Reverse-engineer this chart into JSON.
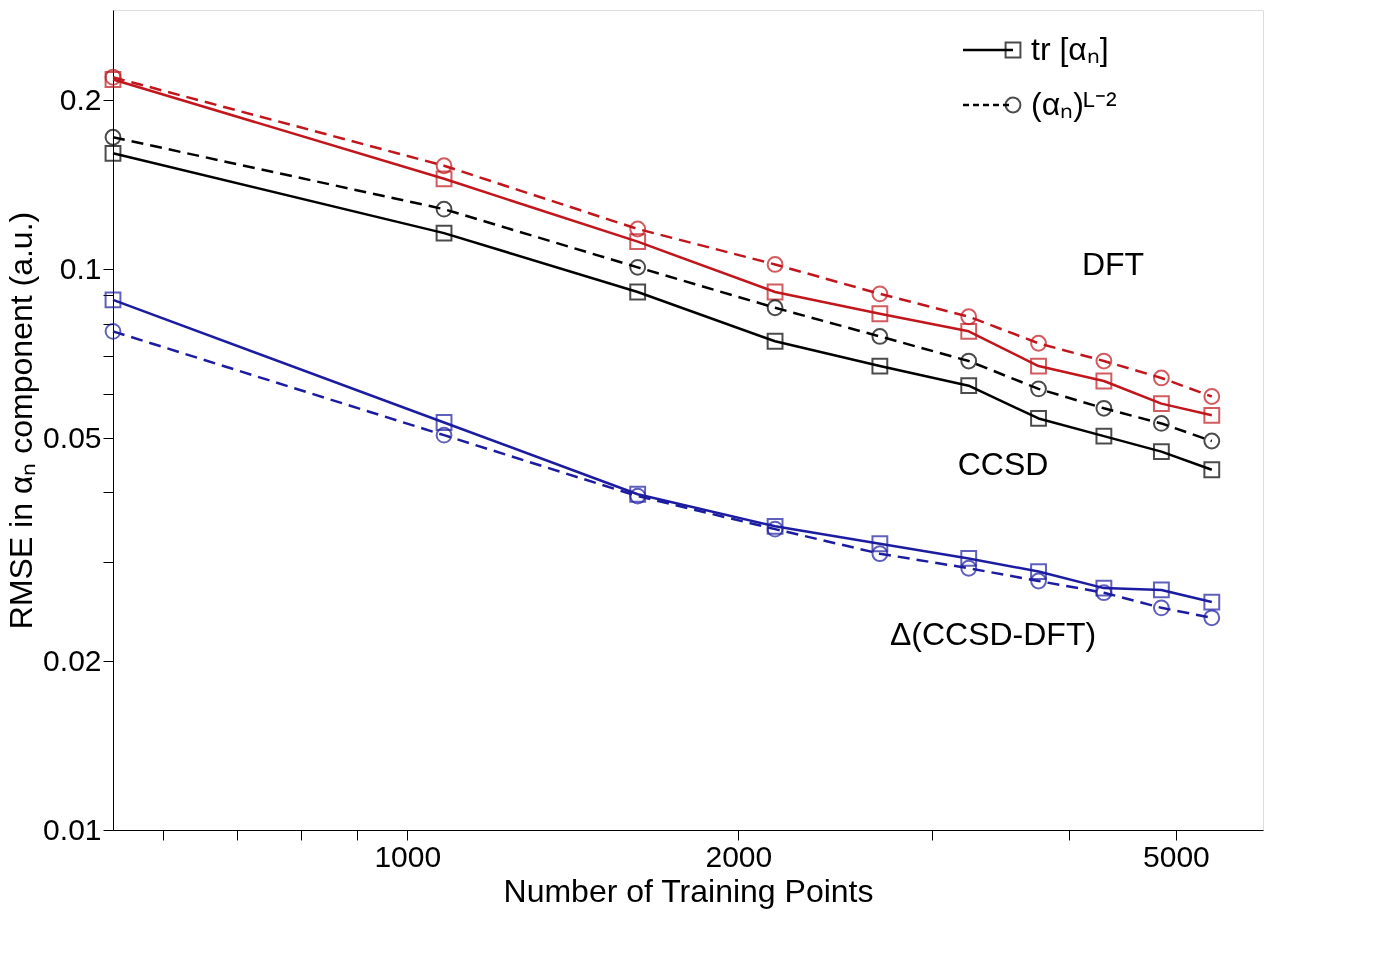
{
  "chart_data": {
    "type": "line",
    "xlabel": "Number of Training Points",
    "ylabel": "RMSE in αₙ component (a.u.)",
    "log": "xy",
    "xlim": [
      540,
      6000
    ],
    "ylim": [
      0.01,
      0.29
    ],
    "xticks": [
      {
        "value": 600,
        "label": null
      },
      {
        "value": 700,
        "label": null
      },
      {
        "value": 800,
        "label": null
      },
      {
        "value": 900,
        "label": null
      },
      1000,
      2000,
      {
        "value": 3000,
        "label": null
      },
      {
        "value": 4000,
        "label": null
      },
      5000
    ],
    "yticks": [
      0.01,
      0.02,
      {
        "value": 0.03,
        "label": null
      },
      {
        "value": 0.04,
        "label": null
      },
      0.05,
      {
        "value": 0.06,
        "label": null
      },
      {
        "value": 0.07,
        "label": null
      },
      {
        "value": 0.08,
        "label": null
      },
      {
        "value": 0.09,
        "label": null
      },
      0.1,
      0.2
    ],
    "x": [
      540,
      1080,
      1620,
      2160,
      2690,
      3240,
      3750,
      4300,
      4850,
      5390
    ],
    "grid": false,
    "legend": "top right",
    "series": [
      {
        "name": "tr [αₙ]",
        "color": "#000000",
        "marker": "square",
        "line_style": "solid",
        "values": [
          0.161,
          0.116,
          0.0911,
          0.0744,
          0.0672,
          0.062,
          0.0542,
          0.0504,
          0.0473,
          0.0439
        ]
      },
      {
        "name": "(αₙ)ᴸ⁻²",
        "color": "#000000",
        "marker": "circle",
        "line_style": "dashed",
        "values": [
          0.172,
          0.128,
          0.1008,
          0.0854,
          0.0759,
          0.0686,
          0.0612,
          0.0565,
          0.0531,
          0.0494
        ]
      },
      {
        "color": "#c0161c",
        "marker": "square",
        "line_style": "solid",
        "values": [
          0.218,
          0.145,
          0.112,
          0.0911,
          0.0833,
          0.0775,
          0.0672,
          0.0632,
          0.0576,
          0.0549
        ]
      },
      {
        "color": "#c0161c",
        "marker": "circle",
        "line_style": "dashed",
        "values": [
          0.22,
          0.153,
          0.118,
          0.102,
          0.0904,
          0.0823,
          0.0738,
          0.0686,
          0.064,
          0.0593
        ]
      },
      {
        "color": "#1c1ca0",
        "marker": "square",
        "line_style": "solid",
        "values": [
          0.0882,
          0.0533,
          0.0397,
          0.0348,
          0.0324,
          0.0305,
          0.0289,
          0.027,
          0.0268,
          0.0255
        ]
      },
      {
        "color": "#1c1ca0",
        "marker": "circle",
        "line_style": "dashed",
        "values": [
          0.0775,
          0.0506,
          0.0394,
          0.0344,
          0.0311,
          0.0293,
          0.0278,
          0.0265,
          0.0249,
          0.0239
        ]
      }
    ],
    "annotations": [
      "DFT",
      "CCSD",
      "Δ(CCSD-DFT)"
    ]
  }
}
